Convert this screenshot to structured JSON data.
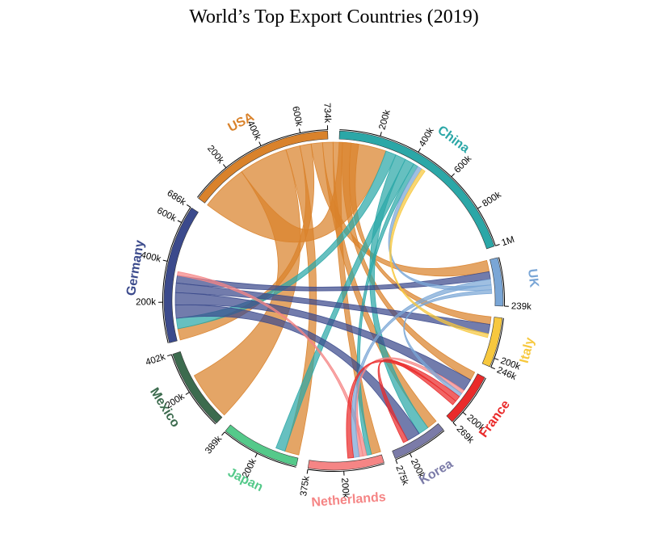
{
  "chart_data": {
    "type": "chord",
    "title": "World’s Top Export Countries (2019)",
    "groups": [
      {
        "name": "China",
        "color": "#2ba7a7",
        "total": 1000,
        "ticks": [
          {
            "value": 200,
            "label": "200k"
          },
          {
            "value": 400,
            "label": "400k"
          },
          {
            "value": 600,
            "label": "600k"
          },
          {
            "value": 800,
            "label": "800k"
          },
          {
            "value": 1000,
            "label": "1M"
          }
        ]
      },
      {
        "name": "UK",
        "color": "#7aa6d6",
        "total": 239,
        "ticks": [
          {
            "value": 239,
            "label": "239k"
          }
        ]
      },
      {
        "name": "Italy",
        "color": "#f7c83e",
        "total": 246,
        "ticks": [
          {
            "value": 200,
            "label": "200k"
          },
          {
            "value": 246,
            "label": "246k"
          }
        ]
      },
      {
        "name": "France",
        "color": "#ea2a2a",
        "total": 269,
        "ticks": [
          {
            "value": 200,
            "label": "200k"
          },
          {
            "value": 269,
            "label": "269k"
          }
        ]
      },
      {
        "name": "Korea",
        "color": "#7b7ba8",
        "total": 275,
        "ticks": [
          {
            "value": 200,
            "label": "200k"
          },
          {
            "value": 275,
            "label": "275k"
          }
        ]
      },
      {
        "name": "Netherlands",
        "color": "#f58585",
        "total": 375,
        "ticks": [
          {
            "value": 200,
            "label": "200k"
          },
          {
            "value": 375,
            "label": "375k"
          }
        ]
      },
      {
        "name": "Japan",
        "color": "#55c98a",
        "total": 389,
        "ticks": [
          {
            "value": 200,
            "label": "200k"
          },
          {
            "value": 389,
            "label": "389k"
          }
        ]
      },
      {
        "name": "Mexico",
        "color": "#3c6b4e",
        "total": 402,
        "ticks": [
          {
            "value": 200,
            "label": "200k"
          },
          {
            "value": 402,
            "label": "402k"
          }
        ]
      },
      {
        "name": "Germany",
        "color": "#3b4a8c",
        "total": 686,
        "ticks": [
          {
            "value": 200,
            "label": "200k"
          },
          {
            "value": 400,
            "label": "400k"
          },
          {
            "value": 600,
            "label": "600k"
          },
          {
            "value": 686,
            "label": "686k"
          }
        ]
      },
      {
        "name": "USA",
        "color": "#d9822b",
        "total": 734,
        "ticks": [
          {
            "value": 200,
            "label": "200k"
          },
          {
            "value": 400,
            "label": "400k"
          },
          {
            "value": 600,
            "label": "600k"
          },
          {
            "value": 734,
            "label": "734k"
          }
        ]
      }
    ],
    "flows": [
      {
        "from": "USA",
        "to": "China",
        "value": 250
      },
      {
        "from": "USA",
        "to": "Mexico",
        "value": 260
      },
      {
        "from": "USA",
        "to": "Japan",
        "value": 75
      },
      {
        "from": "USA",
        "to": "Germany",
        "value": 60
      },
      {
        "from": "USA",
        "to": "UK",
        "value": 60
      },
      {
        "from": "USA",
        "to": "Korea",
        "value": 55
      },
      {
        "from": "USA",
        "to": "Netherlands",
        "value": 50
      },
      {
        "from": "USA",
        "to": "France",
        "value": 45
      },
      {
        "from": "USA",
        "to": "Italy",
        "value": 40
      },
      {
        "from": "China",
        "to": "Germany",
        "value": 55
      },
      {
        "from": "China",
        "to": "Korea",
        "value": 55
      },
      {
        "from": "China",
        "to": "Japan",
        "value": 50
      },
      {
        "from": "China",
        "to": "Netherlands",
        "value": 25
      },
      {
        "from": "Germany",
        "to": "Korea",
        "value": 70
      },
      {
        "from": "Germany",
        "to": "France",
        "value": 65
      },
      {
        "from": "Germany",
        "to": "Italy",
        "value": 50
      },
      {
        "from": "Germany",
        "to": "UK",
        "value": 40
      },
      {
        "from": "Netherlands",
        "to": "Germany",
        "value": 20
      },
      {
        "from": "Netherlands",
        "to": "France",
        "value": 20
      },
      {
        "from": "UK",
        "to": "Netherlands",
        "value": 30
      },
      {
        "from": "UK",
        "to": "China",
        "value": 25
      },
      {
        "from": "UK",
        "to": "France",
        "value": 20
      },
      {
        "from": "France",
        "to": "Netherlands",
        "value": 30
      },
      {
        "from": "France",
        "to": "Korea",
        "value": 25
      },
      {
        "from": "Italy",
        "to": "China",
        "value": 20
      }
    ]
  }
}
